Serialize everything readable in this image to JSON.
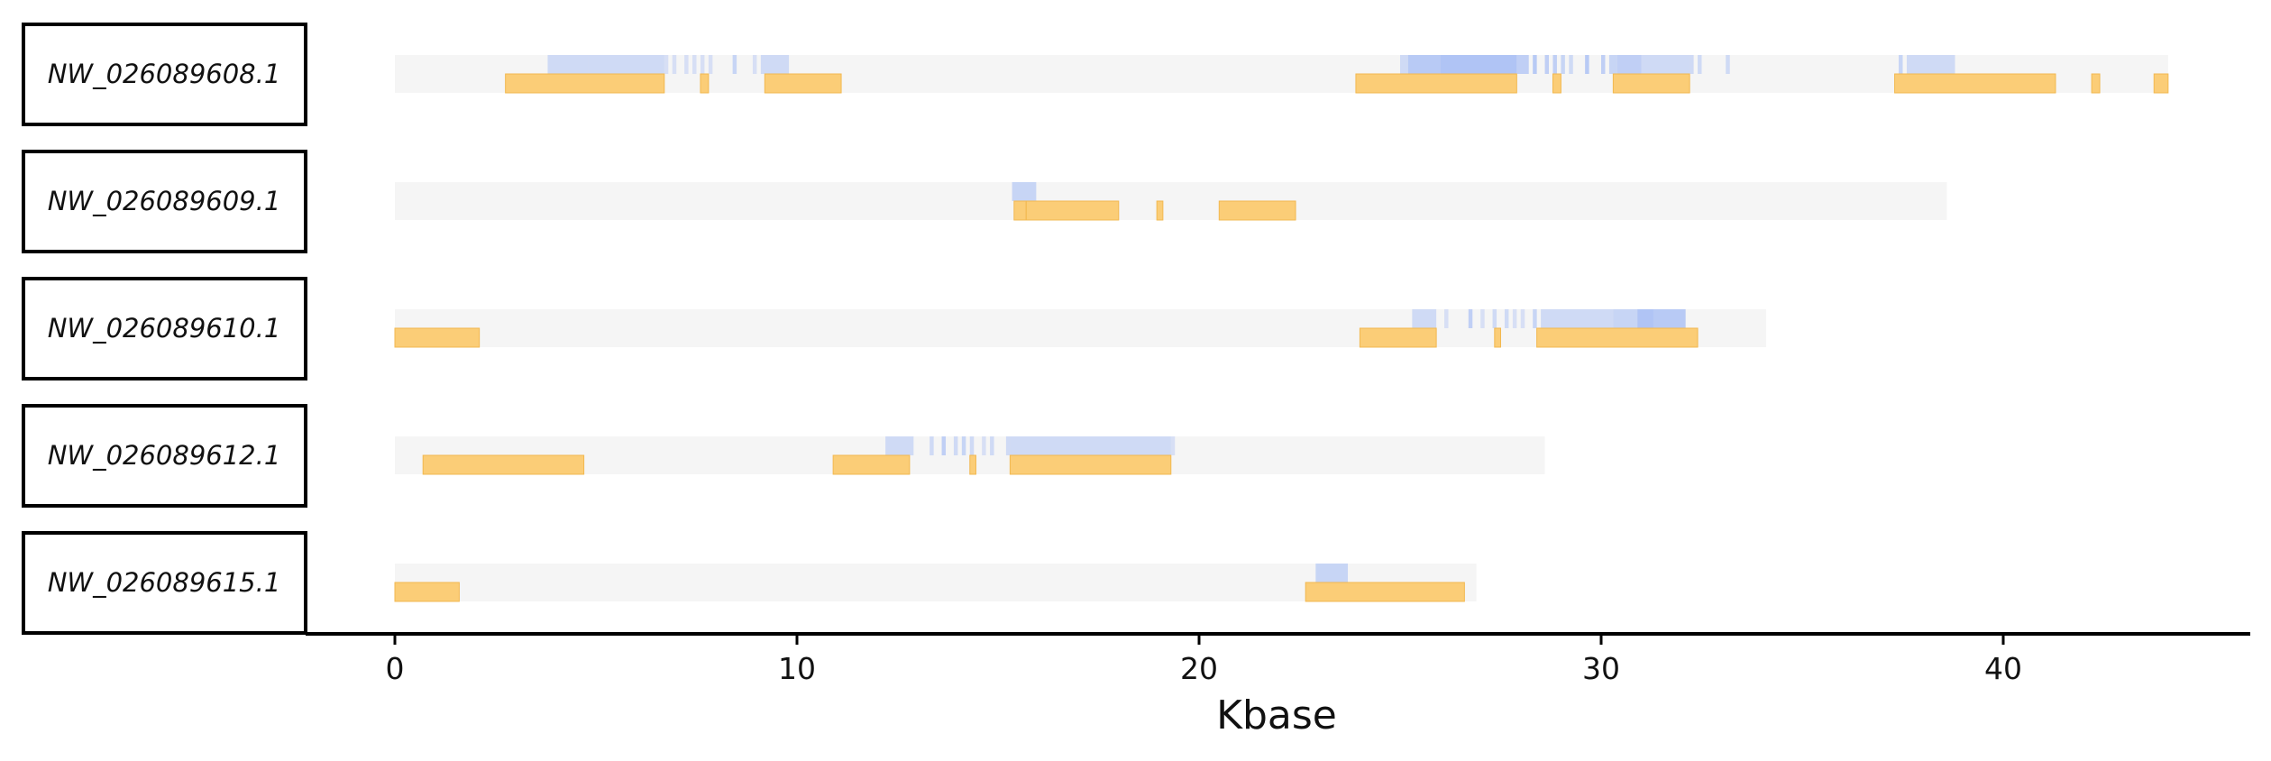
{
  "chart_data": {
    "type": "genome-track",
    "xlabel": "Kbase",
    "xlim": [
      -2.25,
      46.2
    ],
    "xticks": [
      0,
      10,
      20,
      30,
      40
    ],
    "colors": {
      "track": "#f5f5f5",
      "blue": "#a9bff5",
      "orange": "#fbc660",
      "orange_edge": "#f2b850",
      "label_border": "#000000"
    },
    "tracks": [
      {
        "name": "NW_026089608.1",
        "length": 44.1,
        "blue": [
          [
            3.8,
            4.8,
            0.5
          ],
          [
            4.8,
            6.7,
            0.5
          ],
          [
            6.7,
            6.8,
            0.4
          ],
          [
            6.9,
            7.0,
            0.4
          ],
          [
            7.2,
            7.3,
            0.4
          ],
          [
            7.4,
            7.5,
            0.4
          ],
          [
            7.6,
            7.7,
            0.4
          ],
          [
            7.8,
            7.9,
            0.4
          ],
          [
            8.4,
            8.5,
            0.6
          ],
          [
            8.9,
            9.0,
            0.4
          ],
          [
            9.1,
            9.8,
            0.5
          ],
          [
            25.0,
            25.2,
            0.5
          ],
          [
            25.2,
            26.0,
            0.8
          ],
          [
            26.0,
            27.9,
            0.9
          ],
          [
            27.9,
            28.2,
            0.7
          ],
          [
            28.3,
            28.4,
            0.8
          ],
          [
            28.6,
            28.7,
            0.7
          ],
          [
            28.8,
            28.9,
            0.7
          ],
          [
            29.0,
            29.1,
            0.6
          ],
          [
            29.2,
            29.3,
            0.5
          ],
          [
            29.6,
            29.7,
            0.8
          ],
          [
            30.0,
            30.1,
            0.7
          ],
          [
            30.2,
            30.4,
            0.6
          ],
          [
            30.4,
            31.0,
            0.7
          ],
          [
            31.0,
            32.2,
            0.5
          ],
          [
            32.2,
            32.3,
            0.5
          ],
          [
            32.4,
            32.5,
            0.5
          ],
          [
            33.1,
            33.2,
            0.5
          ],
          [
            37.4,
            37.5,
            0.6
          ],
          [
            37.6,
            38.8,
            0.5
          ]
        ],
        "orange": [
          [
            2.75,
            6.7
          ],
          [
            7.6,
            7.8
          ],
          [
            9.2,
            11.1
          ],
          [
            23.9,
            27.9
          ],
          [
            28.8,
            29.0
          ],
          [
            30.3,
            32.2
          ],
          [
            37.3,
            41.3
          ],
          [
            42.2,
            42.4
          ],
          [
            43.75,
            44.1
          ]
        ]
      },
      {
        "name": "NW_026089609.1",
        "length": 38.6,
        "blue": [
          [
            15.35,
            15.95,
            0.6
          ]
        ],
        "orange": [
          [
            15.4,
            15.7
          ],
          [
            15.7,
            18.0
          ],
          [
            18.95,
            19.1
          ],
          [
            20.5,
            22.4
          ]
        ]
      },
      {
        "name": "NW_026089610.1",
        "length": 34.1,
        "blue": [
          [
            25.3,
            25.9,
            0.5
          ],
          [
            26.1,
            26.2,
            0.4
          ],
          [
            26.7,
            26.8,
            0.7
          ],
          [
            27.0,
            27.1,
            0.4
          ],
          [
            27.3,
            27.4,
            0.5
          ],
          [
            27.6,
            27.7,
            0.5
          ],
          [
            27.8,
            27.9,
            0.4
          ],
          [
            28.0,
            28.1,
            0.4
          ],
          [
            28.3,
            28.4,
            0.6
          ],
          [
            28.5,
            30.3,
            0.5
          ],
          [
            30.3,
            30.9,
            0.6
          ],
          [
            30.9,
            31.3,
            0.9
          ],
          [
            31.3,
            32.1,
            0.8
          ]
        ],
        "orange": [
          [
            0.0,
            2.1
          ],
          [
            24.0,
            25.9
          ],
          [
            27.35,
            27.5
          ],
          [
            28.4,
            32.4
          ]
        ]
      },
      {
        "name": "NW_026089612.1",
        "length": 28.6,
        "blue": [
          [
            12.2,
            12.9,
            0.5
          ],
          [
            13.3,
            13.4,
            0.5
          ],
          [
            13.6,
            13.7,
            0.7
          ],
          [
            13.9,
            14.0,
            0.5
          ],
          [
            14.1,
            14.2,
            0.6
          ],
          [
            14.3,
            14.4,
            0.5
          ],
          [
            14.6,
            14.7,
            0.4
          ],
          [
            14.8,
            14.9,
            0.5
          ],
          [
            15.2,
            15.3,
            0.5
          ],
          [
            15.3,
            19.3,
            0.5
          ],
          [
            19.3,
            19.4,
            0.4
          ]
        ],
        "orange": [
          [
            0.7,
            4.7
          ],
          [
            10.9,
            12.8
          ],
          [
            14.3,
            14.45
          ],
          [
            15.3,
            19.3
          ]
        ]
      },
      {
        "name": "NW_026089615.1",
        "length": 26.9,
        "blue": [
          [
            22.9,
            23.7,
            0.6
          ]
        ],
        "orange": [
          [
            0.0,
            1.6
          ],
          [
            22.65,
            26.6
          ]
        ]
      }
    ]
  }
}
